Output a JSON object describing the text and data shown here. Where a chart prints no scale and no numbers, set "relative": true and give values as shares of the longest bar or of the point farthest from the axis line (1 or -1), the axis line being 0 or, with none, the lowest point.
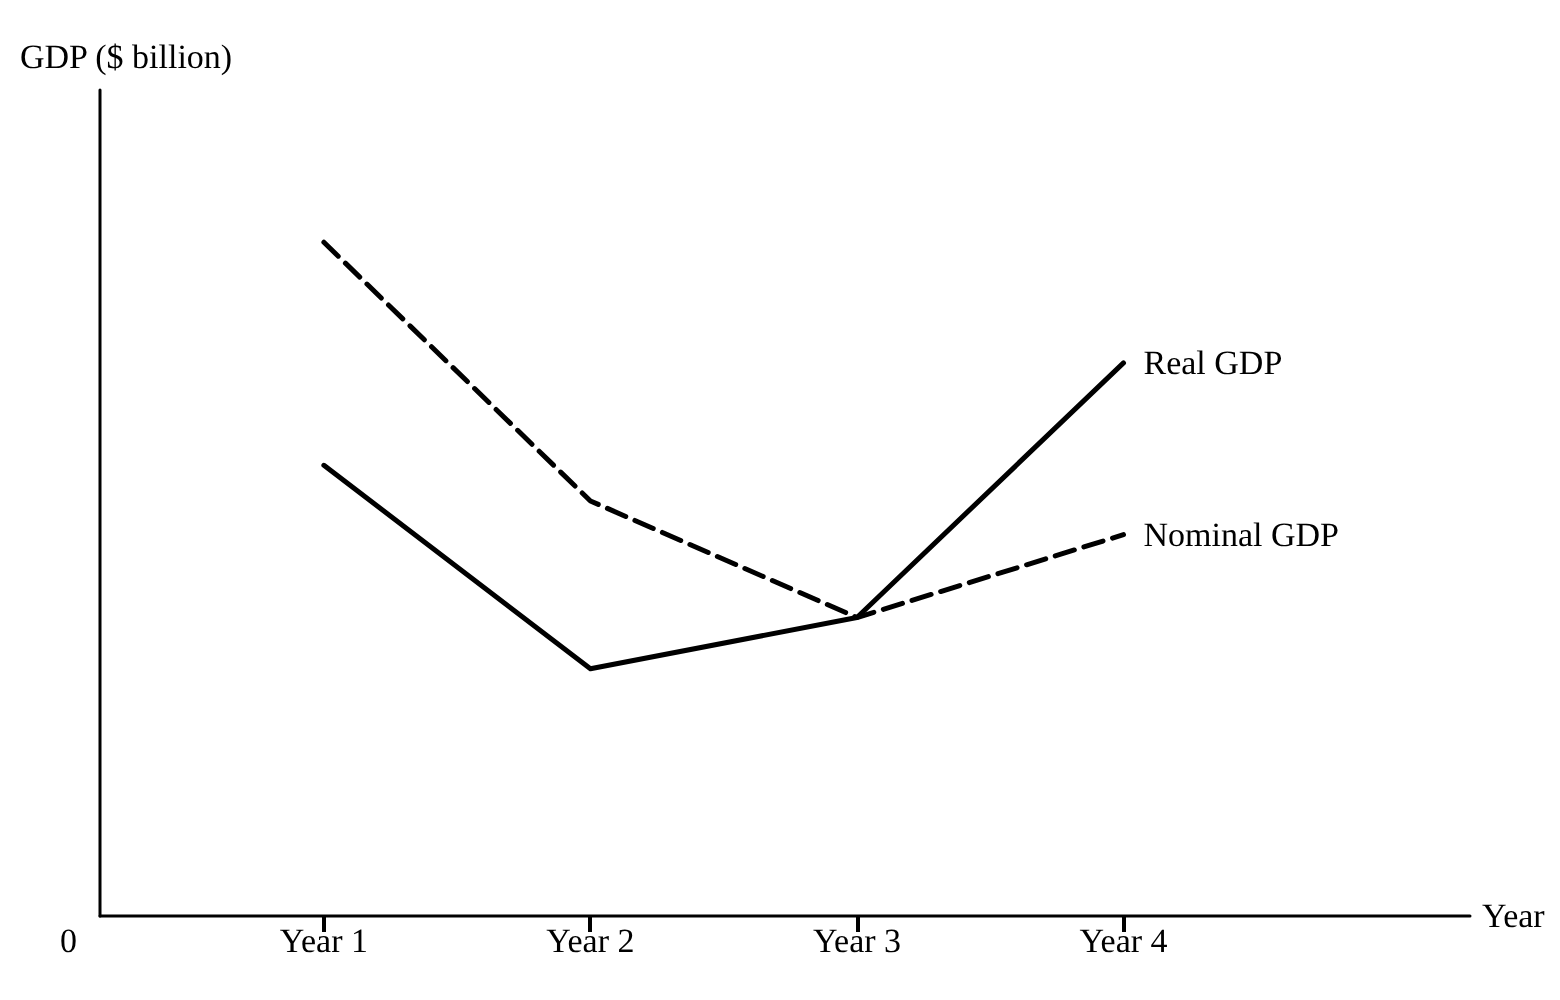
{
  "chart_data": {
    "type": "line",
    "relative": true,
    "xlabel": "Year",
    "ylabel": "GDP ($ billion)",
    "categories": [
      "Year 1",
      "Year 2",
      "Year 3",
      "Year 4"
    ],
    "series": [
      {
        "name": "Real GDP",
        "color": "#000000",
        "line_style": "solid",
        "values": [
          0.669,
          0.367,
          0.443,
          0.821
        ]
      },
      {
        "name": "Nominal GDP",
        "color": "#000000",
        "line_style": "dashed",
        "values": [
          1,
          0.616,
          0.443,
          0.566
        ]
      }
    ],
    "annotations": [
      "0"
    ],
    "legend": false,
    "grid": false,
    "marker": "none"
  }
}
